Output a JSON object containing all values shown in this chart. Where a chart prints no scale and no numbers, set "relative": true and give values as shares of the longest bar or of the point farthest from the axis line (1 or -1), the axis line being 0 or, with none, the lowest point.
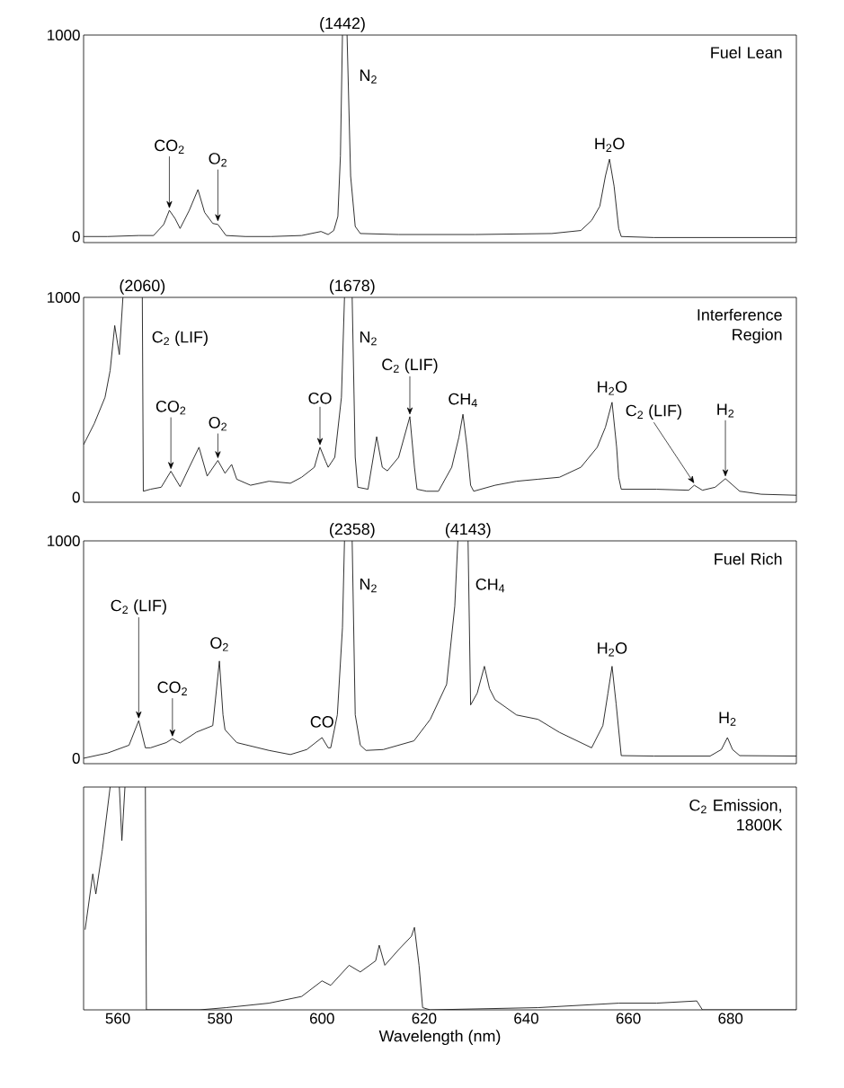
{
  "chart_data": [
    {
      "type": "line",
      "title": "Fuel Lean",
      "xlim": [
        553.3,
        692.9
      ],
      "ylim": [
        -30,
        1000
      ],
      "yticks": [
        0,
        1000
      ],
      "tick_labels": "y",
      "series": [
        {
          "color": "#1a1a1a",
          "x": [
            553.3,
            558.0,
            564.1,
            567.0,
            569.0,
            570.1,
            571.2,
            572.2,
            574.0,
            575.7,
            577.0,
            578.6,
            579.6,
            581.2,
            585,
            590,
            596.0,
            599.8,
            601.2,
            602.3,
            603.1,
            603.6,
            604.0,
            604.45,
            604.9,
            605.6,
            606.5,
            607.5,
            615,
            630,
            645,
            650.7,
            652.8,
            654.4,
            655.5,
            656.3,
            657.2,
            658.1,
            658.6,
            665,
            680,
            692.9
          ],
          "values": [
            0,
            0,
            5,
            5,
            60,
            130,
            90,
            40,
            130,
            233,
            120,
            65,
            60,
            5,
            0,
            0,
            5,
            25,
            10,
            30,
            100,
            400,
            1000,
            null,
            1000,
            300,
            50,
            15,
            10,
            10,
            15,
            30,
            80,
            150,
            300,
            384,
            250,
            40,
            0,
            -5,
            -5,
            -5
          ]
        }
      ],
      "annotations": [
        {
          "text": "(1442)",
          "x": 604.0,
          "y": 1000
        },
        "N$_{2}$",
        {
          "text": "CO$_{2}$",
          "x": 570.1,
          "y": 130
        },
        {
          "text": "O$_{2}$",
          "x": 579.6,
          "y": 65
        },
        {
          "text": "H$_{2}$O",
          "x": 656.3,
          "y": 384
        }
      ]
    },
    {
      "type": "line",
      "title": "Interference Region",
      "xlim": [
        553.3,
        692.9
      ],
      "ylim": [
        -25,
        1000
      ],
      "yticks": [
        0,
        1000
      ],
      "tick_labels": "y",
      "series": [
        {
          "color": "#1a1a1a",
          "x": [
            553.3,
            555.4,
            557.5,
            558.5,
            559.4,
            560.3,
            561.0,
            563.0,
            564.8,
            565.0,
            566.4,
            568.5,
            570.4,
            572.2,
            574.0,
            575.9,
            577.5,
            579.6,
            581.0,
            582.3,
            583.3,
            586,
            589.6,
            593.8,
            596.0,
            598.5,
            599.6,
            600.7,
            601.2,
            602.5,
            603.8,
            604.4,
            605.0,
            605.9,
            606.5,
            607.0,
            609,
            610.7,
            611.8,
            612.8,
            615.0,
            617.2,
            618.1,
            618.6,
            620.5,
            622.8,
            625.4,
            626.8,
            627.6,
            628.4,
            629.1,
            629.7,
            633.9,
            638.1,
            642.3,
            646.5,
            650.7,
            653.9,
            655.5,
            656.8,
            657.7,
            658.1,
            658.6,
            665.5,
            671.8,
            672.9,
            674.5,
            677.0,
            679.0,
            681.8,
            686,
            692.9
          ],
          "values": [
            263,
            369,
            500,
            634,
            859,
            714,
            1000,
            null,
            1000,
            30,
            40,
            50,
            130,
            53,
            150,
            250,
            106,
            184,
            120,
            164,
            90,
            60,
            80,
            70,
            100,
            150,
            250,
            180,
            150,
            200,
            500,
            1000,
            null,
            1000,
            200,
            50,
            40,
            303,
            150,
            132,
            200,
            403,
            150,
            40,
            30,
            30,
            150,
            300,
            415,
            250,
            60,
            30,
            60,
            80,
            90,
            100,
            150,
            250,
            350,
            475,
            250,
            100,
            40,
            40,
            35,
            60,
            35,
            50,
            93,
            30,
            15,
            10
          ]
        }
      ],
      "annotations": [
        {
          "text": "(2060)",
          "x": 564.8,
          "y": 1000
        },
        "C$_{2}$ (LIF)",
        {
          "text": "(1678)",
          "x": 605.9,
          "y": 1000
        },
        "N$_{2}$",
        {
          "text": "CO$_{2}$",
          "x": 570.4,
          "y": 130
        },
        {
          "text": "O$_{2}$",
          "x": 579.6,
          "y": 184
        },
        {
          "text": "CO",
          "x": 599.6,
          "y": 250
        },
        {
          "text": "C$_{2}$ (LIF)",
          "x": 617.2,
          "y": 403
        },
        {
          "text": "CH$_{4}$",
          "x": 627.6,
          "y": 415
        },
        {
          "text": "H$_{2}$O",
          "x": 656.8,
          "y": 475
        },
        {
          "text": "C$_{2}$ (LIF)",
          "x": 672.9,
          "y": 60
        },
        {
          "text": "H$_{2}$",
          "x": 679.0,
          "y": 93
        }
      ]
    },
    {
      "type": "line",
      "title": "Fuel Rich",
      "xlim": [
        553.3,
        692.9
      ],
      "ylim": [
        -25,
        1000
      ],
      "yticks": [
        0,
        1000
      ],
      "tick_labels": "y",
      "series": [
        {
          "color": "#1a1a1a",
          "x": [
            553.3,
            558.0,
            562.2,
            564.1,
            565.4,
            566.4,
            569.5,
            570.7,
            572.2,
            575.4,
            578.6,
            579.9,
            580.6,
            581.0,
            583.3,
            589.6,
            593.8,
            597.0,
            600.0,
            601.2,
            601.7,
            603.0,
            604.0,
            604.4,
            605.0,
            605.9,
            606.5,
            607.5,
            608.6,
            612,
            618,
            621.2,
            624.4,
            626.0,
            626.6,
            627.6,
            628.6,
            629.1,
            630.4,
            631.8,
            632.8,
            633.9,
            638.1,
            642.3,
            646.5,
            652.8,
            655.0,
            656.0,
            656.8,
            657.6,
            658.6,
            665,
            676.0,
            678.2,
            679.4,
            680.4,
            681.8,
            692.9
          ],
          "values": [
            0,
            24,
            60,
            173,
            48,
            48,
            72,
            90,
            70,
            120,
            150,
            447,
            200,
            131,
            72,
            36,
            17,
            40,
            95,
            48,
            48,
            200,
            600,
            1000,
            null,
            1000,
            200,
            60,
            36,
            40,
            80,
            179,
            340,
            700,
            1000,
            null,
            1000,
            245,
            300,
            423,
            320,
            269,
            199,
            179,
            119,
            48,
            150,
            300,
            423,
            250,
            12,
            10,
            10,
            40,
            95,
            40,
            12,
            10
          ]
        }
      ],
      "annotations": [
        {
          "text": "(2358)",
          "x": 605.9,
          "y": 1000
        },
        "N$_{2}$",
        {
          "text": "(4143)",
          "x": 628.6,
          "y": 1000
        },
        "CH$_{4}$",
        {
          "text": "C$_{2}$ (LIF)",
          "x": 564.1,
          "y": 173
        },
        {
          "text": "CO$_{2}$",
          "x": 570.7,
          "y": 90
        },
        {
          "text": "O$_{2}$",
          "x": 579.9,
          "y": 447
        },
        {
          "text": "CO",
          "x": 600.0,
          "y": 95
        },
        {
          "text": "H$_{2}$O",
          "x": 656.8,
          "y": 423
        },
        {
          "text": "H$_{2}$",
          "x": 679.4,
          "y": 95
        }
      ]
    },
    {
      "type": "line",
      "title": "C$_{2}$ Emission, 1800K",
      "relative": true,
      "xlim": [
        553.3,
        692.9
      ],
      "xticks": [
        560,
        580,
        600,
        620,
        640,
        660,
        680
      ],
      "xlabel": "Wavelength (nm)",
      "tick_labels": "x",
      "series": [
        {
          "color": "#1a1a1a",
          "x": [
            553.6,
            555.1,
            555.7,
            557.0,
            558.5,
            559.3,
            560.3,
            560.8,
            561.4,
            563,
            565.4,
            565.6,
            576,
            581.2,
            589.6,
            596.0,
            600.0,
            601.7,
            605.3,
            607.5,
            610.5,
            611.2,
            612.3,
            615.0,
            617.5,
            618.1,
            619.0,
            619.7,
            621.2,
            642.3,
            658.1,
            665.5,
            673.4,
            674.5,
            692.9
          ],
          "values": [
            0.36,
            0.61,
            0.52,
            0.72,
            1,
            null,
            1,
            0.76,
            1,
            null,
            1,
            0,
            0,
            0.01,
            0.03,
            0.06,
            0.13,
            0.11,
            0.2,
            0.17,
            0.22,
            0.29,
            0.2,
            0.27,
            0.33,
            0.37,
            0.2,
            0.01,
            0,
            0.01,
            0.03,
            0.03,
            0.04,
            0,
            0
          ]
        }
      ]
    }
  ]
}
